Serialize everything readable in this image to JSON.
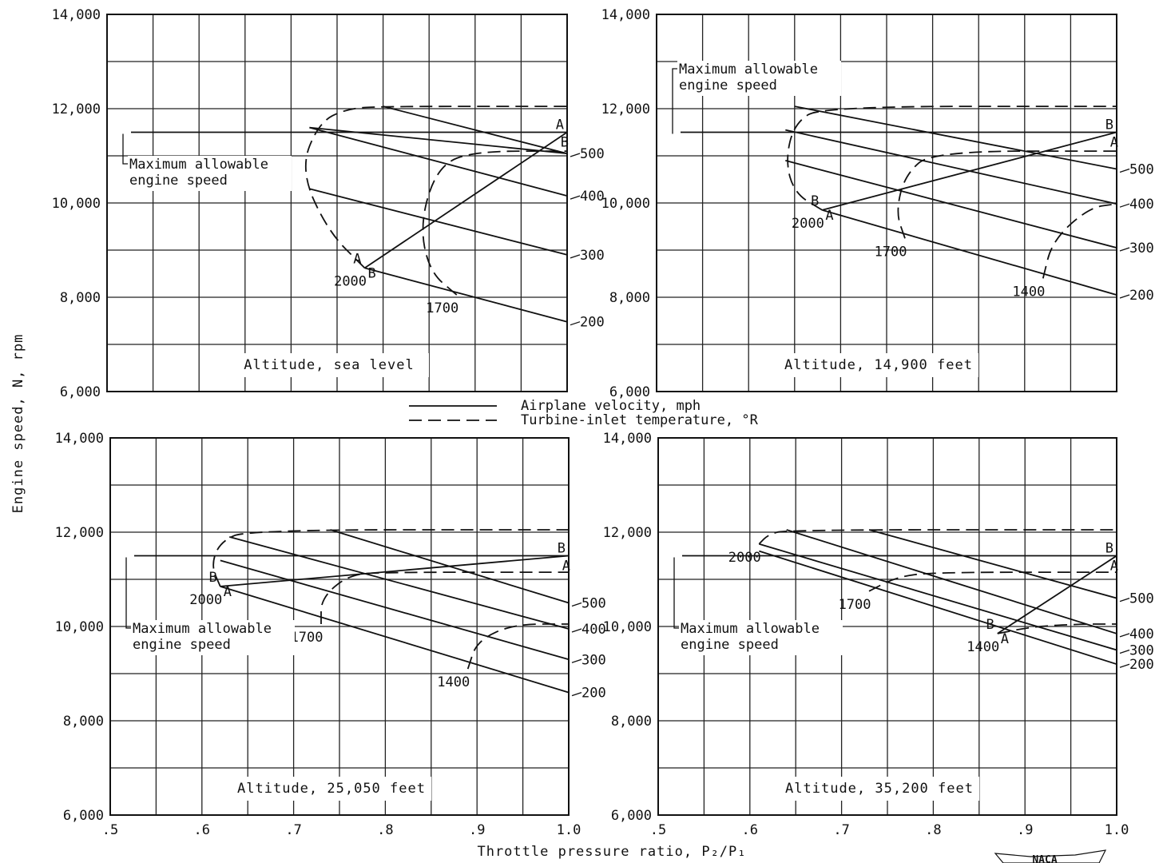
{
  "figure": {
    "ylabel": "Engine speed, N, rpm",
    "xlabel": "Throttle pressure ratio, P₂/P₁",
    "stamp": "NACA",
    "legend": [
      {
        "style": "solid",
        "label": "Airplane velocity, mph"
      },
      {
        "style": "dashed",
        "label": "Turbine-inlet temperature, °R"
      }
    ]
  },
  "chart_data": [
    {
      "type": "line",
      "title": "Altitude, sea level",
      "xlim": [
        0.5,
        1.0
      ],
      "ylim": [
        6000,
        14000
      ],
      "limit_label": "Maximum allowable engine speed",
      "limit_value": 11500,
      "velocity_series": [
        {
          "name": "500",
          "points": [
            [
              0.72,
              11600
            ],
            [
              1.0,
              11050
            ]
          ]
        },
        {
          "name": "400",
          "points": [
            [
              0.72,
              11600
            ],
            [
              1.0,
              10150
            ]
          ]
        },
        {
          "name": "300",
          "points": [
            [
              0.72,
              10300
            ],
            [
              1.0,
              8900
            ]
          ]
        },
        {
          "name": "200",
          "points": [
            [
              0.78,
              8620
            ],
            [
              1.0,
              7480
            ]
          ]
        },
        {
          "name": "",
          "points": [
            [
              0.8,
              12050
            ],
            [
              1.0,
              11050
            ]
          ]
        }
      ],
      "temperature_series": [
        {
          "name": "2000",
          "points": [
            [
              0.78,
              8620
            ],
            [
              0.74,
              9400
            ],
            [
              0.71,
              10700
            ],
            [
              0.73,
              11700
            ],
            [
              0.76,
              12000
            ],
            [
              0.8,
              12050
            ],
            [
              1.0,
              12050
            ]
          ]
        },
        {
          "name": "1700",
          "points": [
            [
              0.88,
              8050
            ],
            [
              0.85,
              8550
            ],
            [
              0.84,
              9600
            ],
            [
              0.86,
              10800
            ],
            [
              0.9,
              11100
            ],
            [
              1.0,
              11100
            ]
          ]
        }
      ],
      "path_A_B": {
        "points": [
          [
            0.78,
            8620
          ],
          [
            1.0,
            11500
          ]
        ],
        "labels": [
          "A",
          "B",
          "A",
          "B"
        ]
      }
    },
    {
      "type": "line",
      "title": "Altitude, 14,900 feet",
      "xlim": [
        0.5,
        1.0
      ],
      "ylim": [
        6000,
        14000
      ],
      "limit_label": "Maximum allowable engine speed",
      "limit_value": 11500,
      "velocity_series": [
        {
          "name": "500",
          "points": [
            [
              0.65,
              12050
            ],
            [
              1.0,
              10720
            ]
          ]
        },
        {
          "name": "400",
          "points": [
            [
              0.64,
              11550
            ],
            [
              1.0,
              9980
            ]
          ]
        },
        {
          "name": "300",
          "points": [
            [
              0.64,
              10900
            ],
            [
              1.0,
              9050
            ]
          ]
        },
        {
          "name": "200",
          "points": [
            [
              0.68,
              9850
            ],
            [
              1.0,
              8050
            ]
          ]
        }
      ],
      "temperature_series": [
        {
          "name": "2000",
          "points": [
            [
              0.68,
              9850
            ],
            [
              0.65,
              10200
            ],
            [
              0.64,
              10900
            ],
            [
              0.65,
              11700
            ],
            [
              0.68,
              12050
            ],
            [
              1.0,
              12050
            ]
          ]
        },
        {
          "name": "1700",
          "points": [
            [
              0.77,
              9250
            ],
            [
              0.76,
              9800
            ],
            [
              0.77,
              10600
            ],
            [
              0.8,
              11100
            ],
            [
              1.0,
              11100
            ]
          ]
        },
        {
          "name": "1400",
          "points": [
            [
              0.92,
              8400
            ],
            [
              0.93,
              9200
            ],
            [
              0.97,
              9900
            ],
            [
              1.0,
              9980
            ]
          ]
        }
      ],
      "path_A_B": {
        "points": [
          [
            0.68,
            9850
          ],
          [
            1.0,
            11500
          ]
        ],
        "labels": [
          "B",
          "A",
          "B",
          "A"
        ]
      }
    },
    {
      "type": "line",
      "title": "Altitude, 25,050 feet",
      "xlim": [
        0.5,
        1.0
      ],
      "ylim": [
        6000,
        14000
      ],
      "limit_label": "Maximum allowable engine speed",
      "limit_value": 11500,
      "velocity_series": [
        {
          "name": "500",
          "points": [
            [
              0.74,
              12050
            ],
            [
              1.0,
              10500
            ]
          ]
        },
        {
          "name": "400",
          "points": [
            [
              0.63,
              11900
            ],
            [
              1.0,
              9950
            ]
          ]
        },
        {
          "name": "300",
          "points": [
            [
              0.62,
              11400
            ],
            [
              1.0,
              9300
            ]
          ]
        },
        {
          "name": "200",
          "points": [
            [
              0.62,
              10850
            ],
            [
              1.0,
              8600
            ]
          ]
        }
      ],
      "temperature_series": [
        {
          "name": "2000",
          "points": [
            [
              0.62,
              10850
            ],
            [
              0.61,
              11300
            ],
            [
              0.62,
              11800
            ],
            [
              0.65,
              12050
            ],
            [
              1.0,
              12050
            ]
          ]
        },
        {
          "name": "1700",
          "points": [
            [
              0.73,
              10050
            ],
            [
              0.73,
              10600
            ],
            [
              0.76,
              11100
            ],
            [
              0.8,
              11150
            ],
            [
              1.0,
              11150
            ]
          ]
        },
        {
          "name": "1400",
          "points": [
            [
              0.89,
              9100
            ],
            [
              0.9,
              9700
            ],
            [
              0.94,
              10050
            ],
            [
              1.0,
              10050
            ]
          ]
        }
      ],
      "path_A_B": {
        "points": [
          [
            0.62,
            10850
          ],
          [
            1.0,
            11500
          ]
        ],
        "labels": [
          "B",
          "A",
          "B",
          "A"
        ]
      }
    },
    {
      "type": "line",
      "title": "Altitude, 35,200 feet",
      "xlim": [
        0.5,
        1.0
      ],
      "ylim": [
        6000,
        14000
      ],
      "limit_label": "Maximum allowable engine speed",
      "limit_value": 11500,
      "velocity_series": [
        {
          "name": "500",
          "points": [
            [
              0.73,
              12050
            ],
            [
              1.0,
              10600
            ]
          ]
        },
        {
          "name": "400",
          "points": [
            [
              0.64,
              12050
            ],
            [
              1.0,
              9850
            ]
          ]
        },
        {
          "name": "300",
          "points": [
            [
              0.61,
              11750
            ],
            [
              1.0,
              9500
            ]
          ]
        },
        {
          "name": "200",
          "points": [
            [
              0.61,
              11600
            ],
            [
              1.0,
              9200
            ]
          ]
        }
      ],
      "temperature_series": [
        {
          "name": "2000",
          "points": [
            [
              0.61,
              11750
            ],
            [
              0.62,
              11950
            ],
            [
              0.64,
              12050
            ],
            [
              1.0,
              12050
            ]
          ]
        },
        {
          "name": "1700",
          "points": [
            [
              0.73,
              10750
            ],
            [
              0.76,
              11050
            ],
            [
              0.8,
              11150
            ],
            [
              1.0,
              11150
            ]
          ]
        },
        {
          "name": "1400",
          "points": [
            [
              0.87,
              9850
            ],
            [
              0.91,
              10000
            ],
            [
              0.96,
              10050
            ],
            [
              1.0,
              10050
            ]
          ]
        }
      ],
      "path_A_B": {
        "points": [
          [
            0.87,
            9850
          ],
          [
            1.0,
            11500
          ]
        ],
        "labels": [
          "B",
          "A",
          "B",
          "A"
        ]
      }
    }
  ]
}
